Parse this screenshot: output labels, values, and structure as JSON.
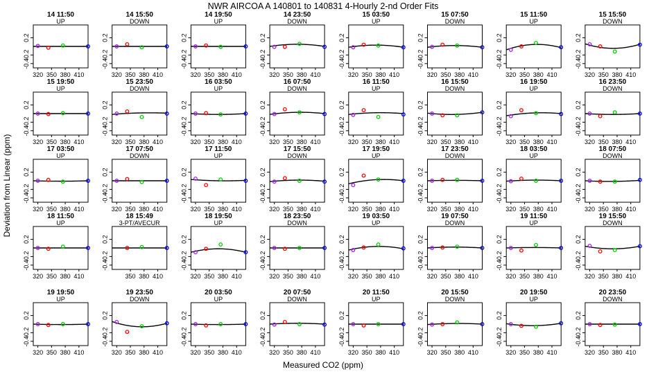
{
  "title": "NWR   AIRCOA A   140801 to 140831   4-Hourly 2-nd Order Fits",
  "xlabel": "Measured CO2 (ppm)",
  "ylabel": "Deviation from Linear (ppm)",
  "colors": {
    "curve": "#000000",
    "low": "#a020f0",
    "ref2": "#ff0000",
    "ref3": "#00cc00",
    "high": "#0000ff",
    "frame": "#000000"
  },
  "chart_data": {
    "type": "scatter",
    "xlim": [
      310,
      430
    ],
    "ylim": [
      -0.5,
      0.5
    ],
    "xticks": [
      "320",
      "350",
      "380",
      "410"
    ],
    "yticks": [
      "0.2",
      "-0.2",
      "-0.4"
    ],
    "x_tick_values": [
      320,
      350,
      380,
      410
    ],
    "y_tick_values": [
      0.2,
      -0.2,
      -0.4
    ],
    "grid": false,
    "point_x_default": [
      320,
      343,
      375,
      430
    ],
    "panels": [
      {
        "title": "14 11:50",
        "subtitle": "UP",
        "points": [
          0.01,
          -0.03,
          0.02,
          0.0
        ],
        "curve": [
          0,
          0,
          0
        ]
      },
      {
        "title": "14 15:50",
        "subtitle": "DOWN",
        "points": [
          0.0,
          0.05,
          -0.02,
          0.0
        ],
        "curve": [
          0,
          0,
          0
        ]
      },
      {
        "title": "14 19:50",
        "subtitle": "UP",
        "points": [
          0.0,
          0.02,
          -0.01,
          0.0
        ],
        "curve": [
          0,
          0,
          0
        ]
      },
      {
        "title": "14 23:50",
        "subtitle": "DOWN",
        "points": [
          -0.01,
          -0.01,
          0.06,
          -0.01
        ],
        "curve": [
          0,
          0.05,
          0
        ]
      },
      {
        "title": "15 03:50",
        "subtitle": "UP",
        "points": [
          -0.02,
          0.04,
          0.02,
          -0.02
        ],
        "curve": [
          -0.02,
          0.05,
          -0.02
        ]
      },
      {
        "title": "15 07:50",
        "subtitle": "DOWN",
        "points": [
          -0.01,
          0.04,
          0.02,
          -0.02
        ],
        "curve": [
          -0.02,
          0.04,
          -0.02
        ]
      },
      {
        "title": "15 11:50",
        "subtitle": "UP",
        "points": [
          -0.08,
          0.0,
          0.08,
          -0.02
        ],
        "curve": [
          -0.08,
          0.1,
          -0.03
        ]
      },
      {
        "title": "15 15:50",
        "subtitle": "DOWN",
        "points": [
          0.05,
          0.0,
          -0.12,
          0.04
        ],
        "curve": [
          0.06,
          -0.1,
          0.05
        ]
      },
      {
        "title": "15 19:50",
        "subtitle": "UP",
        "points": [
          0.0,
          -0.01,
          0.01,
          0.0
        ],
        "curve": [
          0,
          0,
          0
        ]
      },
      {
        "title": "15 23:50",
        "subtitle": "DOWN",
        "points": [
          0.0,
          0.05,
          -0.08,
          0.0
        ],
        "curve": [
          -0.02,
          0.02,
          0.01
        ]
      },
      {
        "title": "16 03:50",
        "subtitle": "UP",
        "points": [
          0.0,
          0.01,
          -0.02,
          0.0
        ],
        "curve": [
          0,
          -0.02,
          0
        ]
      },
      {
        "title": "16 07:50",
        "subtitle": "DOWN",
        "points": [
          -0.01,
          0.1,
          0.03,
          -0.01
        ],
        "curve": [
          -0.02,
          0.04,
          0
        ]
      },
      {
        "title": "16 11:50",
        "subtitle": "UP",
        "points": [
          -0.03,
          0.08,
          -0.08,
          -0.02
        ],
        "curve": [
          -0.02,
          0.03,
          0
        ]
      },
      {
        "title": "16 15:50",
        "subtitle": "DOWN",
        "points": [
          0.0,
          -0.04,
          -0.04,
          0.03
        ],
        "curve": [
          0.01,
          -0.04,
          0.03
        ]
      },
      {
        "title": "16 19:50",
        "subtitle": "UP",
        "points": [
          -0.06,
          0.08,
          0.01,
          -0.01
        ],
        "curve": [
          -0.05,
          0.04,
          0
        ]
      },
      {
        "title": "16 23:50",
        "subtitle": "DOWN",
        "points": [
          0.0,
          -0.06,
          0.03,
          0.0
        ],
        "curve": [
          0,
          -0.02,
          0
        ]
      },
      {
        "title": "17 03:50",
        "subtitle": "UP",
        "points": [
          0.0,
          0.02,
          -0.02,
          0.0
        ],
        "curve": [
          0,
          -0.01,
          0
        ]
      },
      {
        "title": "17 07:50",
        "subtitle": "DOWN",
        "points": [
          0.0,
          0.04,
          -0.03,
          0.0
        ],
        "curve": [
          0,
          0,
          0
        ]
      },
      {
        "title": "17 11:50",
        "subtitle": "UP",
        "points": [
          0.05,
          -0.1,
          0.03,
          0.0
        ],
        "curve": [
          0.03,
          -0.02,
          0.01
        ]
      },
      {
        "title": "17 15:50",
        "subtitle": "DOWN",
        "points": [
          -0.02,
          0.06,
          0.0,
          -0.02
        ],
        "curve": [
          -0.02,
          0.03,
          -0.01
        ]
      },
      {
        "title": "17 19:50",
        "subtitle": "UP",
        "points": [
          -0.1,
          0.12,
          0.03,
          0.0
        ],
        "curve": [
          -0.07,
          0.06,
          0
        ]
      },
      {
        "title": "17 23:50",
        "subtitle": "DOWN",
        "points": [
          0.0,
          0.02,
          0.02,
          0.0
        ],
        "curve": [
          0,
          0.01,
          0
        ]
      },
      {
        "title": "18 03:50",
        "subtitle": "UP",
        "points": [
          -0.01,
          0.05,
          0.0,
          0.0
        ],
        "curve": [
          -0.01,
          0.02,
          0
        ]
      },
      {
        "title": "18 07:50",
        "subtitle": "DOWN",
        "points": [
          0.0,
          -0.02,
          -0.02,
          0.02
        ],
        "curve": [
          0,
          -0.02,
          0.01
        ]
      },
      {
        "title": "18 11:50",
        "subtitle": "UP",
        "points": [
          0.0,
          -0.02,
          0.03,
          0.0
        ],
        "curve": [
          0,
          0,
          0
        ]
      },
      {
        "title": "18 15:49",
        "subtitle": "3-PT/AVECUR",
        "points_x": [
          343,
          375,
          430
        ],
        "points_colors": [
          "ref2",
          "ref3",
          "high"
        ],
        "points": [
          0.0,
          0.02,
          0.0
        ],
        "curve": [
          0,
          0,
          0
        ]
      },
      {
        "title": "18 19:50",
        "subtitle": "UP",
        "points": [
          -0.1,
          -0.02,
          0.08,
          -0.1
        ],
        "curve": [
          -0.1,
          0.08,
          -0.1
        ]
      },
      {
        "title": "18 23:50",
        "subtitle": "DOWN",
        "points": [
          0.0,
          -0.02,
          0.0,
          0.0
        ],
        "curve": [
          0,
          0,
          0
        ]
      },
      {
        "title": "19 03:50",
        "subtitle": "UP",
        "points": [
          -0.05,
          0.01,
          0.08,
          -0.01
        ],
        "curve": [
          -0.05,
          0.07,
          -0.02
        ]
      },
      {
        "title": "19 07:50",
        "subtitle": "DOWN",
        "points": [
          0.0,
          0.01,
          0.03,
          0.0
        ],
        "curve": [
          0,
          0.02,
          0
        ]
      },
      {
        "title": "19 11:50",
        "subtitle": "UP",
        "points": [
          0.0,
          -0.06,
          0.07,
          0.0
        ],
        "curve": [
          0,
          0.01,
          0
        ]
      },
      {
        "title": "19 15:50",
        "subtitle": "DOWN",
        "points": [
          0.05,
          -0.08,
          -0.05,
          0.04
        ],
        "curve": [
          0.04,
          -0.06,
          0.04
        ]
      },
      {
        "title": "19 19:50",
        "subtitle": "UP",
        "points": [
          0.0,
          -0.02,
          0.0,
          0.0
        ],
        "curve": [
          0,
          -0.01,
          0
        ]
      },
      {
        "title": "19 23:50",
        "subtitle": "DOWN",
        "points": [
          0.05,
          -0.18,
          -0.05,
          0.02
        ],
        "curve": [
          0.06,
          -0.1,
          0.02
        ]
      },
      {
        "title": "20 03:50",
        "subtitle": "UP",
        "points": [
          0.0,
          -0.03,
          0.0,
          0.0
        ],
        "curve": [
          0,
          -0.01,
          0
        ]
      },
      {
        "title": "20 07:50",
        "subtitle": "DOWN",
        "points": [
          -0.01,
          0.05,
          0.0,
          -0.01
        ],
        "curve": [
          0,
          0.02,
          0
        ]
      },
      {
        "title": "20 11:50",
        "subtitle": "UP",
        "points": [
          0.0,
          -0.03,
          0.0,
          0.0
        ],
        "curve": [
          0,
          0,
          0
        ]
      },
      {
        "title": "20 15:50",
        "subtitle": "DOWN",
        "points": [
          -0.01,
          0.0,
          0.04,
          0.0
        ],
        "curve": [
          -0.01,
          0.02,
          0
        ]
      },
      {
        "title": "20 19:50",
        "subtitle": "UP",
        "points": [
          0.0,
          -0.04,
          -0.06,
          0.02
        ],
        "curve": [
          0.01,
          -0.05,
          0.02
        ]
      },
      {
        "title": "20 23:50",
        "subtitle": "DOWN",
        "points": [
          0.0,
          -0.02,
          -0.01,
          0.0
        ],
        "curve": [
          0,
          0,
          0
        ]
      }
    ]
  }
}
